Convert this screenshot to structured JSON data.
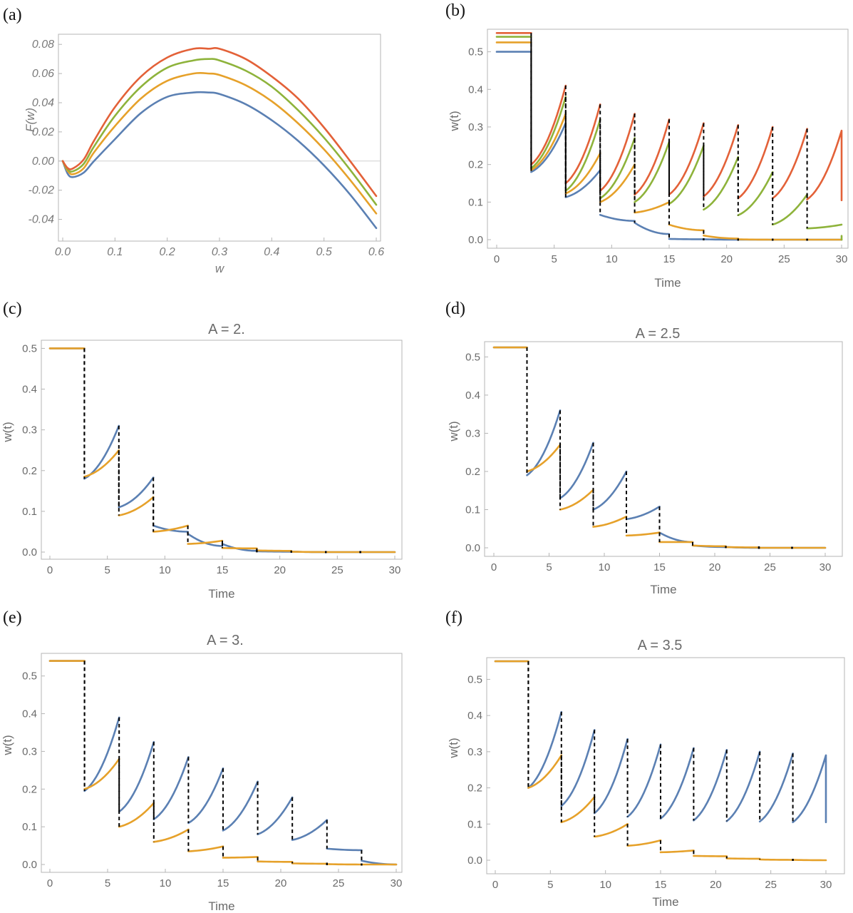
{
  "colors": {
    "blue": "#5b80b3",
    "orange": "#e6a12a",
    "green": "#8eb33b",
    "red": "#e36138",
    "jump": "#000000"
  },
  "chart_data": [
    {
      "panel": "(a)",
      "type": "line",
      "title": "",
      "xlabel": "w",
      "ylabel": "F(w)",
      "xlim": [
        0,
        0.6
      ],
      "ylim": [
        -0.05,
        0.085
      ],
      "xticks": [
        "0.0",
        "0.1",
        "0.2",
        "0.3",
        "0.4",
        "0.5",
        "0.6"
      ],
      "yticks": [
        "0.08",
        "0.06",
        "0.04",
        "0.02",
        "0.00",
        "-0.02",
        "-0.04"
      ],
      "grid": false,
      "legend": "none",
      "series": [
        {
          "color": "blue",
          "x": [
            0,
            0.01,
            0.02,
            0.04,
            0.06,
            0.1,
            0.15,
            0.2,
            0.25,
            0.28,
            0.3,
            0.35,
            0.4,
            0.45,
            0.5,
            0.55,
            0.6
          ],
          "y": [
            0,
            -0.009,
            -0.011,
            -0.008,
            0,
            0.015,
            0.033,
            0.044,
            0.047,
            0.047,
            0.046,
            0.039,
            0.028,
            0.014,
            -0.003,
            -0.023,
            -0.046
          ]
        },
        {
          "color": "orange",
          "x": [
            0,
            0.01,
            0.02,
            0.04,
            0.06,
            0.1,
            0.15,
            0.2,
            0.25,
            0.28,
            0.3,
            0.35,
            0.4,
            0.45,
            0.5,
            0.55,
            0.6
          ],
          "y": [
            0,
            -0.007,
            -0.009,
            -0.005,
            0.006,
            0.024,
            0.043,
            0.055,
            0.06,
            0.06,
            0.059,
            0.052,
            0.041,
            0.026,
            0.008,
            -0.013,
            -0.036
          ]
        },
        {
          "color": "green",
          "x": [
            0,
            0.01,
            0.02,
            0.04,
            0.06,
            0.1,
            0.15,
            0.2,
            0.25,
            0.28,
            0.3,
            0.35,
            0.4,
            0.45,
            0.5,
            0.55,
            0.6
          ],
          "y": [
            0,
            -0.006,
            -0.007,
            -0.002,
            0.01,
            0.031,
            0.051,
            0.064,
            0.069,
            0.07,
            0.069,
            0.062,
            0.051,
            0.035,
            0.016,
            -0.006,
            -0.03
          ]
        },
        {
          "color": "red",
          "x": [
            0,
            0.01,
            0.02,
            0.04,
            0.06,
            0.1,
            0.15,
            0.2,
            0.25,
            0.28,
            0.3,
            0.35,
            0.4,
            0.45,
            0.5,
            0.55,
            0.6
          ],
          "y": [
            0,
            -0.005,
            -0.005,
            0.001,
            0.014,
            0.037,
            0.058,
            0.071,
            0.077,
            0.077,
            0.077,
            0.07,
            0.058,
            0.043,
            0.023,
            0.0,
            -0.024
          ]
        }
      ]
    },
    {
      "panel": "(b)",
      "type": "line",
      "title": "",
      "xlabel": "Time",
      "ylabel": "w(t)",
      "xlim": [
        0,
        30
      ],
      "ylim": [
        0,
        0.56
      ],
      "xticks": [
        "0",
        "5",
        "10",
        "15",
        "20",
        "25",
        "30"
      ],
      "yticks": [
        "0.0",
        "0.1",
        "0.2",
        "0.3",
        "0.4",
        "0.5"
      ],
      "grid": false,
      "legend": "none",
      "period": 3,
      "series": [
        {
          "color": "blue",
          "init": 0.5,
          "starts": [
            0.18,
            0.113,
            0.066,
            0.045,
            0.002,
            0.001,
            0.0,
            0.0,
            0.0,
            0.0
          ],
          "ends": [
            0.31,
            0.185,
            0.05,
            0.015,
            0.001,
            0.0,
            0.0,
            0.0,
            0.0,
            0.0
          ]
        },
        {
          "color": "orange",
          "init": 0.525,
          "starts": [
            0.185,
            0.123,
            0.1,
            0.072,
            0.04,
            0.011,
            0.001,
            0.0,
            0.0,
            0.0
          ],
          "ends": [
            0.335,
            0.23,
            0.2,
            0.1,
            0.025,
            0.003,
            0.0,
            0.0,
            0.0,
            0.0
          ]
        },
        {
          "color": "green",
          "init": 0.54,
          "starts": [
            0.19,
            0.13,
            0.11,
            0.1,
            0.095,
            0.08,
            0.065,
            0.04,
            0.03,
            0.01
          ],
          "ends": [
            0.38,
            0.32,
            0.27,
            0.26,
            0.25,
            0.22,
            0.18,
            0.12,
            0.04,
            0.0
          ]
        },
        {
          "color": "red",
          "init": 0.55,
          "starts": [
            0.2,
            0.15,
            0.13,
            0.12,
            0.12,
            0.115,
            0.11,
            0.11,
            0.107,
            0.105
          ],
          "ends": [
            0.41,
            0.36,
            0.335,
            0.32,
            0.31,
            0.305,
            0.3,
            0.295,
            0.29,
            0.29
          ]
        }
      ]
    },
    {
      "panel": "(c)",
      "type": "line",
      "title": "A = 2.",
      "xlabel": "Time",
      "ylabel": "w(t)",
      "xlim": [
        0,
        30
      ],
      "ylim": [
        0,
        0.52
      ],
      "xticks": [
        "0",
        "5",
        "10",
        "15",
        "20",
        "25",
        "30"
      ],
      "yticks": [
        "0.0",
        "0.1",
        "0.2",
        "0.3",
        "0.4",
        "0.5"
      ],
      "grid": false,
      "legend": "none",
      "period": 3,
      "series": [
        {
          "color": "blue",
          "init": 0.5,
          "starts": [
            0.18,
            0.11,
            0.065,
            0.045,
            0.02,
            0.002,
            0.001,
            0.0,
            0.0,
            0.0
          ],
          "ends": [
            0.31,
            0.183,
            0.05,
            0.015,
            0.003,
            0.001,
            0.0,
            0.0,
            0.0,
            0.0
          ]
        },
        {
          "color": "orange",
          "init": 0.5,
          "starts": [
            0.185,
            0.09,
            0.05,
            0.02,
            0.01,
            0.004,
            0.001,
            0.0,
            0.0,
            0.0
          ],
          "ends": [
            0.25,
            0.135,
            0.065,
            0.028,
            0.009,
            0.003,
            0.0,
            0.0,
            0.0,
            0.0
          ]
        }
      ]
    },
    {
      "panel": "(d)",
      "type": "line",
      "title": "A = 2.5",
      "xlabel": "Time",
      "ylabel": "w(t)",
      "xlim": [
        0,
        30
      ],
      "ylim": [
        0,
        0.54
      ],
      "xticks": [
        "0",
        "5",
        "10",
        "15",
        "20",
        "25",
        "30"
      ],
      "yticks": [
        "0.0",
        "0.1",
        "0.2",
        "0.3",
        "0.4",
        "0.5"
      ],
      "grid": false,
      "legend": "none",
      "period": 3,
      "series": [
        {
          "color": "blue",
          "init": 0.525,
          "starts": [
            0.19,
            0.13,
            0.1,
            0.075,
            0.04,
            0.006,
            0.002,
            0.0,
            0.0,
            0.0
          ],
          "ends": [
            0.36,
            0.275,
            0.2,
            0.108,
            0.015,
            0.002,
            0.0,
            0.0,
            0.0,
            0.0
          ]
        },
        {
          "color": "orange",
          "init": 0.525,
          "starts": [
            0.2,
            0.1,
            0.055,
            0.032,
            0.015,
            0.006,
            0.002,
            0.0,
            0.0,
            0.0
          ],
          "ends": [
            0.27,
            0.152,
            0.082,
            0.04,
            0.015,
            0.004,
            0.001,
            0.0,
            0.0,
            0.0
          ]
        }
      ]
    },
    {
      "panel": "(e)",
      "type": "line",
      "title": "A = 3.",
      "xlabel": "Time",
      "ylabel": "w(t)",
      "xlim": [
        0,
        30
      ],
      "ylim": [
        0,
        0.56
      ],
      "xticks": [
        "0",
        "5",
        "10",
        "15",
        "20",
        "25",
        "30"
      ],
      "yticks": [
        "0.0",
        "0.1",
        "0.2",
        "0.3",
        "0.4",
        "0.5"
      ],
      "grid": false,
      "legend": "none",
      "period": 3,
      "series": [
        {
          "color": "blue",
          "init": 0.54,
          "starts": [
            0.195,
            0.14,
            0.12,
            0.11,
            0.09,
            0.08,
            0.065,
            0.042,
            0.01,
            0.0
          ],
          "ends": [
            0.39,
            0.325,
            0.285,
            0.255,
            0.22,
            0.178,
            0.118,
            0.038,
            0.0,
            0.0
          ]
        },
        {
          "color": "orange",
          "init": 0.54,
          "starts": [
            0.2,
            0.1,
            0.06,
            0.035,
            0.018,
            0.008,
            0.003,
            0.001,
            0.0,
            0.0
          ],
          "ends": [
            0.28,
            0.163,
            0.093,
            0.048,
            0.02,
            0.007,
            0.002,
            0.0,
            0.0,
            0.0
          ]
        }
      ]
    },
    {
      "panel": "(f)",
      "type": "line",
      "title": "A = 3.5",
      "xlabel": "Time",
      "ylabel": "w(t)",
      "xlim": [
        0,
        30
      ],
      "ylim": [
        0,
        0.56
      ],
      "xticks": [
        "0",
        "5",
        "10",
        "15",
        "20",
        "25",
        "30"
      ],
      "yticks": [
        "0.0",
        "0.1",
        "0.2",
        "0.3",
        "0.4",
        "0.5"
      ],
      "grid": false,
      "legend": "none",
      "period": 3,
      "series": [
        {
          "color": "blue",
          "init": 0.55,
          "starts": [
            0.2,
            0.15,
            0.13,
            0.12,
            0.115,
            0.11,
            0.108,
            0.107,
            0.105,
            0.105
          ],
          "ends": [
            0.41,
            0.36,
            0.335,
            0.32,
            0.31,
            0.305,
            0.3,
            0.295,
            0.29,
            0.29
          ]
        },
        {
          "color": "orange",
          "init": 0.55,
          "starts": [
            0.2,
            0.105,
            0.065,
            0.04,
            0.022,
            0.012,
            0.005,
            0.002,
            0.001,
            0.0
          ],
          "ends": [
            0.29,
            0.175,
            0.1,
            0.055,
            0.027,
            0.011,
            0.004,
            0.001,
            0.0,
            0.0
          ]
        }
      ]
    }
  ]
}
